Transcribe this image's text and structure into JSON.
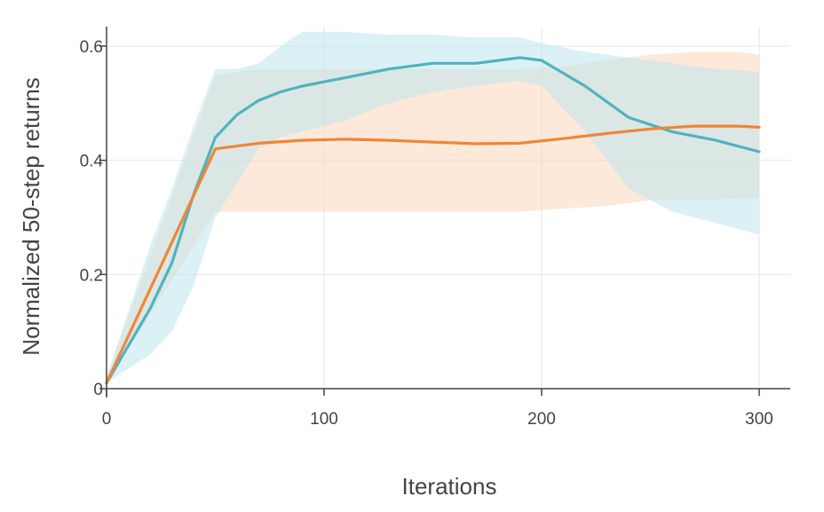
{
  "chart_data": {
    "type": "line",
    "title": "",
    "xlabel": "Iterations",
    "ylabel": "Normalized 50-step returns",
    "xlim": [
      0,
      315
    ],
    "ylim": [
      0,
      0.62
    ],
    "xticks": [
      {
        "value": 0,
        "label": "0"
      },
      {
        "value": 100,
        "label": "100"
      },
      {
        "value": 200,
        "label": "200"
      },
      {
        "value": 300,
        "label": "300"
      }
    ],
    "yticks": [
      {
        "value": 0,
        "label": "0"
      },
      {
        "value": 0.2,
        "label": "0.2"
      },
      {
        "value": 0.4,
        "label": "0.4"
      },
      {
        "value": 0.6,
        "label": "0.6"
      }
    ],
    "grid": true,
    "legend": "none",
    "series": [
      {
        "color": "#ef8636",
        "band_color": "#fbd7bb",
        "x": [
          0,
          50,
          70,
          90,
          110,
          130,
          150,
          170,
          190,
          210,
          230,
          250,
          270,
          290,
          300
        ],
        "mean": [
          0.01,
          0.42,
          0.43,
          0.435,
          0.437,
          0.435,
          0.432,
          0.429,
          0.43,
          0.438,
          0.447,
          0.455,
          0.46,
          0.46,
          0.458
        ],
        "lower": [
          0.01,
          0.31,
          0.31,
          0.31,
          0.31,
          0.31,
          0.31,
          0.31,
          0.31,
          0.315,
          0.32,
          0.33,
          0.33,
          0.333,
          0.333
        ],
        "upper": [
          0.02,
          0.55,
          0.56,
          0.56,
          0.56,
          0.56,
          0.56,
          0.56,
          0.56,
          0.565,
          0.575,
          0.585,
          0.59,
          0.59,
          0.585
        ]
      },
      {
        "color": "#4fb3bf",
        "band_color": "#bfe5ef",
        "x": [
          0,
          20,
          30,
          40,
          50,
          60,
          70,
          80,
          90,
          110,
          130,
          150,
          170,
          190,
          200,
          220,
          240,
          260,
          280,
          300
        ],
        "mean": [
          0.01,
          0.14,
          0.22,
          0.34,
          0.44,
          0.48,
          0.505,
          0.52,
          0.53,
          0.545,
          0.56,
          0.57,
          0.57,
          0.58,
          0.575,
          0.53,
          0.475,
          0.45,
          0.435,
          0.415
        ],
        "lower": [
          0.01,
          0.06,
          0.1,
          0.18,
          0.3,
          0.36,
          0.42,
          0.44,
          0.45,
          0.47,
          0.5,
          0.52,
          0.53,
          0.54,
          0.53,
          0.45,
          0.35,
          0.31,
          0.29,
          0.27
        ],
        "upper": [
          0.02,
          0.25,
          0.35,
          0.46,
          0.56,
          0.56,
          0.57,
          0.6,
          0.625,
          0.625,
          0.62,
          0.62,
          0.615,
          0.615,
          0.605,
          0.59,
          0.58,
          0.57,
          0.56,
          0.555
        ]
      }
    ]
  }
}
